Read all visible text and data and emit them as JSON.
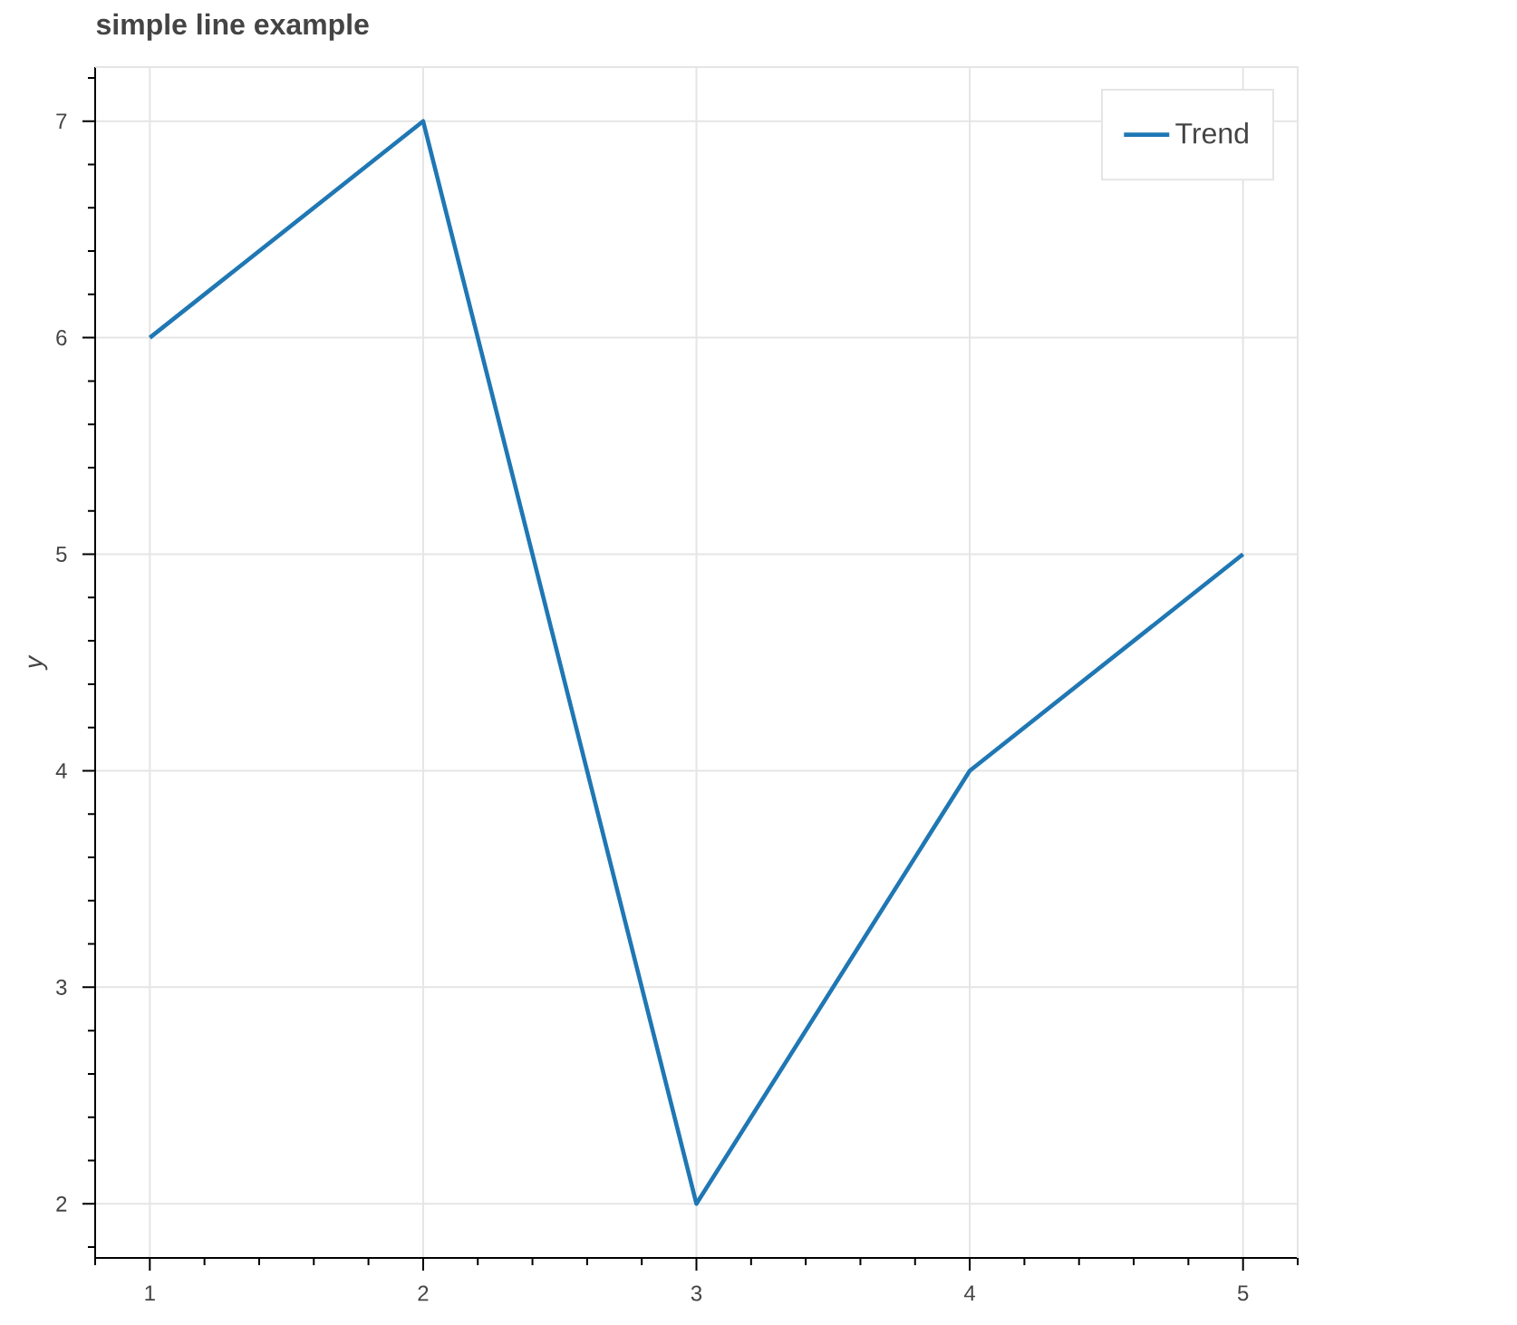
{
  "chart_data": {
    "type": "line",
    "title": "simple line example",
    "ylabel": "y",
    "x": [
      1,
      2,
      3,
      4,
      5
    ],
    "series": [
      {
        "name": "Trend",
        "color": "#1f77b4",
        "values": [
          6,
          7,
          2,
          4,
          5
        ]
      }
    ],
    "xlim": [
      0.8,
      5.2
    ],
    "ylim": [
      1.75,
      7.25
    ],
    "xticks": [
      1,
      2,
      3,
      4,
      5
    ],
    "yticks": [
      2,
      3,
      4,
      5,
      6,
      7
    ],
    "grid": true,
    "legend": "top right"
  }
}
